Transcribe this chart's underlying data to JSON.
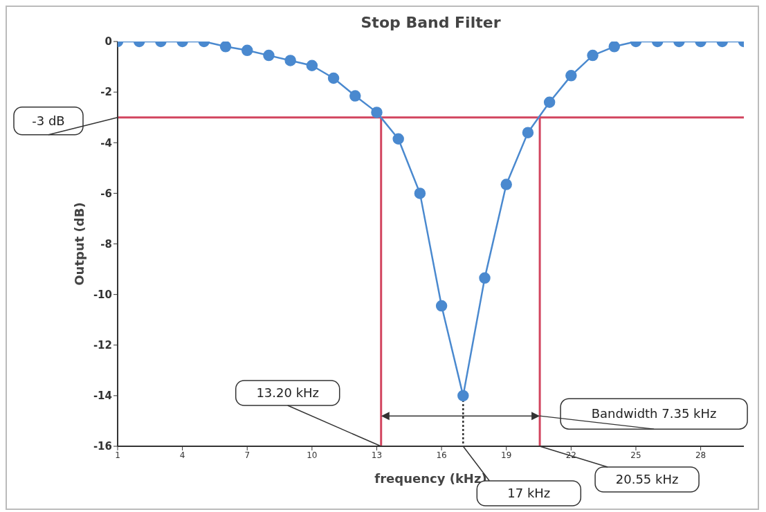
{
  "chart_data": {
    "type": "line",
    "title": "Stop Band Filter",
    "xlabel": "frequency (kHz)",
    "ylabel": "Output (dB)",
    "x": [
      1,
      2,
      3,
      4,
      5,
      6,
      7,
      8,
      9,
      10,
      11,
      12,
      13,
      14,
      15,
      16,
      17,
      18,
      19,
      20,
      21,
      22,
      23,
      24,
      25,
      26,
      27,
      28,
      29,
      30
    ],
    "series": [
      {
        "color": "#4a89cf",
        "values": [
          0,
          0,
          0,
          0,
          0,
          -0.2,
          -0.35,
          -0.55,
          -0.75,
          -0.95,
          -1.45,
          -2.15,
          -2.8,
          -3.85,
          -6.0,
          -10.45,
          -14.0,
          -9.35,
          -5.65,
          -3.6,
          -2.4,
          -1.35,
          -0.55,
          -0.2,
          0,
          0,
          0,
          0,
          0,
          0
        ]
      }
    ],
    "xlim": [
      1,
      30
    ],
    "xticks": [
      1,
      4,
      7,
      10,
      13,
      16,
      19,
      22,
      25,
      28
    ],
    "ylim": [
      -16,
      0
    ],
    "yticks": [
      -16,
      -14,
      -12,
      -10,
      -8,
      -6,
      -4,
      -2,
      0
    ],
    "ref_lines": [
      {
        "axis": "y",
        "value": -3,
        "label": "-3 dB",
        "color": "#d2455f"
      },
      {
        "axis": "x",
        "value": 13.2,
        "label": "13.20 kHz",
        "color": "#d2455f"
      },
      {
        "axis": "x",
        "value": 20.55,
        "label": "20.55 kHz",
        "color": "#d2455f"
      },
      {
        "axis": "x",
        "value": 17,
        "label": "17 kHz",
        "color": "#333333",
        "line_style": "dotted"
      }
    ],
    "annotations": [
      {
        "text": "Bandwidth 7.35 kHz",
        "x": 20.55,
        "y": -14.8
      }
    ],
    "marker": "circle"
  }
}
